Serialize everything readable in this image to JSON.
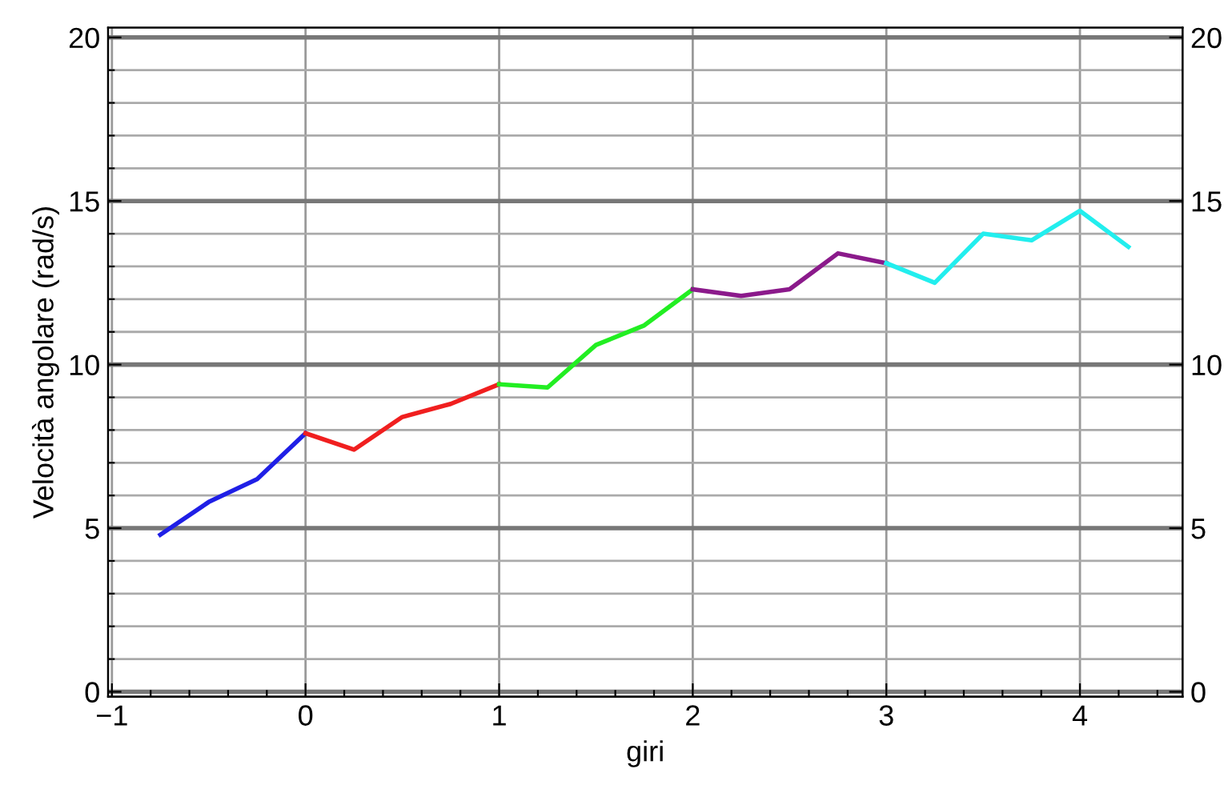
{
  "chart_data": {
    "type": "line",
    "xlabel": "giri",
    "ylabel": "Velocità angolare (rad/s)",
    "series": [
      {
        "color": "#1f1fe6",
        "x": [
          -0.75,
          -0.5,
          -0.25,
          0
        ],
        "values": [
          4.8,
          5.8,
          6.5,
          7.9
        ]
      },
      {
        "color": "#f01f1f",
        "x": [
          0,
          0.25,
          0.5,
          0.75,
          1
        ],
        "values": [
          7.9,
          7.4,
          8.4,
          8.8,
          9.4
        ]
      },
      {
        "color": "#22ee22",
        "x": [
          1,
          1.25,
          1.5,
          1.75,
          2
        ],
        "values": [
          9.4,
          9.3,
          10.6,
          11.2,
          12.3
        ]
      },
      {
        "color": "#8b1a8b",
        "x": [
          2,
          2.25,
          2.5,
          2.75,
          3
        ],
        "values": [
          12.3,
          12.1,
          12.3,
          13.4,
          13.1
        ]
      },
      {
        "color": "#22eeee",
        "x": [
          3,
          3.25,
          3.5,
          3.75,
          4,
          4.25
        ],
        "values": [
          13.1,
          12.5,
          14.0,
          13.8,
          14.7,
          13.6
        ]
      }
    ],
    "xlim": [
      -1.02,
      4.53
    ],
    "xticks": [
      {
        "value": -1,
        "label": "−1"
      },
      {
        "value": -0.8,
        "label": null
      },
      {
        "value": -0.6,
        "label": null
      },
      {
        "value": -0.4,
        "label": null
      },
      {
        "value": -0.2,
        "label": null
      },
      0,
      {
        "value": 0.2,
        "label": null
      },
      {
        "value": 0.4,
        "label": null
      },
      {
        "value": 0.6,
        "label": null
      },
      {
        "value": 0.8,
        "label": null
      },
      1,
      {
        "value": 1.2,
        "label": null
      },
      {
        "value": 1.4,
        "label": null
      },
      {
        "value": 1.6,
        "label": null
      },
      {
        "value": 1.8,
        "label": null
      },
      2,
      {
        "value": 2.2,
        "label": null
      },
      {
        "value": 2.4,
        "label": null
      },
      {
        "value": 2.6,
        "label": null
      },
      {
        "value": 2.8,
        "label": null
      },
      3,
      {
        "value": 3.2,
        "label": null
      },
      {
        "value": 3.4,
        "label": null
      },
      {
        "value": 3.6,
        "label": null
      },
      {
        "value": 3.8,
        "label": null
      },
      4,
      {
        "value": 4.2,
        "label": null
      },
      {
        "value": 4.4,
        "label": null
      }
    ],
    "ylim": [
      -0.15,
      20.3
    ],
    "yticks": [
      0,
      {
        "value": 1,
        "label": null
      },
      {
        "value": 2,
        "label": null
      },
      {
        "value": 3,
        "label": null
      },
      {
        "value": 4,
        "label": null
      },
      5,
      {
        "value": 6,
        "label": null
      },
      {
        "value": 7,
        "label": null
      },
      {
        "value": 8,
        "label": null
      },
      {
        "value": 9,
        "label": null
      },
      10,
      {
        "value": 11,
        "label": null
      },
      {
        "value": 12,
        "label": null
      },
      {
        "value": 13,
        "label": null
      },
      {
        "value": 14,
        "label": null
      },
      15,
      {
        "value": 16,
        "label": null
      },
      {
        "value": 17,
        "label": null
      },
      {
        "value": 18,
        "label": null
      },
      {
        "value": 19,
        "label": null
      },
      20
    ],
    "y2lim": [
      -0.15,
      20.3
    ],
    "y2ticks": [
      0,
      5,
      10,
      15,
      20
    ],
    "grid": true,
    "line_style": "solid",
    "marker": "none"
  }
}
